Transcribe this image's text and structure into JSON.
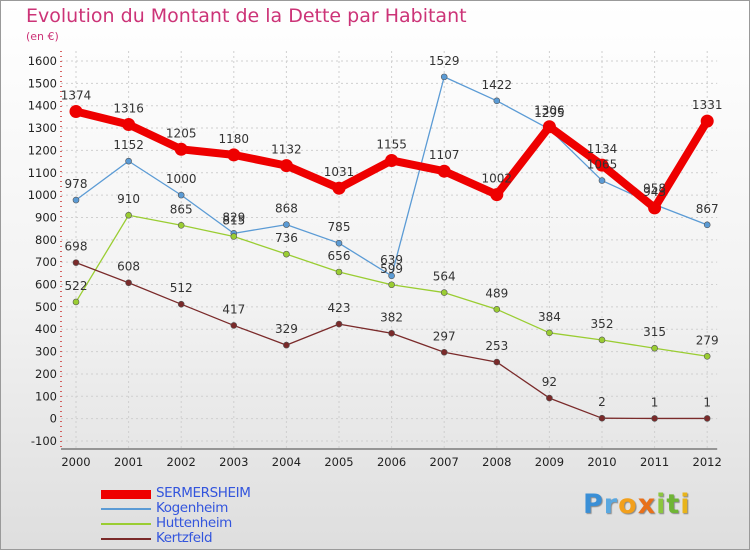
{
  "title": "Evolution du Montant de la Dette par Habitant",
  "unit_label": "(en €)",
  "brand": {
    "letters": [
      {
        "char": "P",
        "color": "#3a8fd6"
      },
      {
        "char": "r",
        "color": "#5aa8e0"
      },
      {
        "char": "o",
        "color": "#f2a01c"
      },
      {
        "char": "x",
        "color": "#e8701a"
      },
      {
        "char": "i",
        "color": "#8cc63f"
      },
      {
        "char": "t",
        "color": "#6fb535"
      },
      {
        "char": "i",
        "color": "#e8b41a"
      }
    ]
  },
  "chart_data": {
    "type": "line",
    "x": [
      "2000",
      "2001",
      "2002",
      "2003",
      "2004",
      "2005",
      "2006",
      "2007",
      "2008",
      "2009",
      "2010",
      "2011",
      "2012"
    ],
    "y_ticks": [
      1600,
      1500,
      1400,
      1300,
      1200,
      1100,
      1000,
      900,
      800,
      700,
      600,
      500,
      400,
      300,
      200,
      100,
      0,
      -100
    ],
    "ylim": [
      -100,
      1600
    ],
    "grid": true,
    "legend_position": "bottom-left",
    "series": [
      {
        "name": "SERMERSHEIM",
        "color": "#ee0000",
        "emphasis": true,
        "values": [
          1374,
          1316,
          1205,
          1180,
          1132,
          1031,
          1155,
          1107,
          1002,
          1306,
          1134,
          943,
          1331
        ],
        "labels": [
          "1374",
          "1316",
          "1205",
          "1180",
          "1132",
          "1031",
          "1155",
          "1107",
          "1002",
          "1306",
          "1134",
          "943",
          "1331"
        ]
      },
      {
        "name": "Kogenheim",
        "color": "#5b9bd5",
        "emphasis": false,
        "values": [
          978,
          1152,
          1000,
          829,
          868,
          785,
          639,
          1529,
          1422,
          1295,
          1065,
          958,
          867
        ],
        "labels": [
          "978",
          "1152",
          "1000",
          "829",
          "868",
          "785",
          "639",
          "1529",
          "1422",
          "1295",
          "1065",
          "958",
          "867"
        ]
      },
      {
        "name": "Huttenheim",
        "color": "#9acd32",
        "emphasis": false,
        "values": [
          522,
          910,
          865,
          815,
          736,
          656,
          599,
          564,
          489,
          384,
          352,
          315,
          279
        ],
        "labels": [
          "522",
          "910",
          "865",
          "815",
          "736",
          "656",
          "599",
          "564",
          "489",
          "384",
          "352",
          "315",
          "279"
        ]
      },
      {
        "name": "Kertzfeld",
        "color": "#7a2a2a",
        "emphasis": false,
        "values": [
          698,
          608,
          512,
          417,
          329,
          423,
          382,
          297,
          253,
          92,
          2,
          1,
          1
        ],
        "labels": [
          "698",
          "608",
          "512",
          "417",
          "329",
          "423",
          "382",
          "297",
          "253",
          "92",
          "2",
          "1",
          "1"
        ]
      }
    ]
  }
}
